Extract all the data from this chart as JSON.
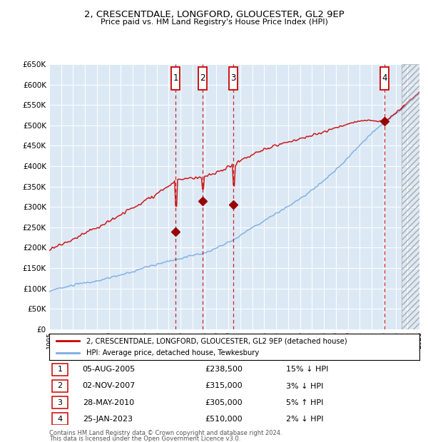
{
  "title1": "2, CRESCENTDALE, LONGFORD, GLOUCESTER, GL2 9EP",
  "title2": "Price paid vs. HM Land Registry's House Price Index (HPI)",
  "legend_line1": "2, CRESCENTDALE, LONGFORD, GLOUCESTER, GL2 9EP (detached house)",
  "legend_line2": "HPI: Average price, detached house, Tewkesbury",
  "footer1": "Contains HM Land Registry data © Crown copyright and database right 2024.",
  "footer2": "This data is licensed under the Open Government Licence v3.0.",
  "sale_events": [
    {
      "num": 1,
      "date": "05-AUG-2005",
      "price": "£238,500",
      "hpi": "15% ↓ HPI",
      "date_decimal": 2005.59,
      "sale_price": 238500
    },
    {
      "num": 2,
      "date": "02-NOV-2007",
      "price": "£315,000",
      "hpi": "3% ↓ HPI",
      "date_decimal": 2007.83,
      "sale_price": 315000
    },
    {
      "num": 3,
      "date": "28-MAY-2010",
      "price": "£305,000",
      "hpi": "5% ↑ HPI",
      "date_decimal": 2010.41,
      "sale_price": 305000
    },
    {
      "num": 4,
      "date": "25-JAN-2023",
      "price": "£510,000",
      "hpi": "2% ↓ HPI",
      "date_decimal": 2023.07,
      "sale_price": 510000
    }
  ],
  "xmin": 1995.0,
  "xmax": 2026.0,
  "ymin": 0,
  "ymax": 650000,
  "yticks": [
    0,
    50000,
    100000,
    150000,
    200000,
    250000,
    300000,
    350000,
    400000,
    450000,
    500000,
    550000,
    600000,
    650000
  ],
  "bg_color": "#dce9f5",
  "red_line_color": "#cc0000",
  "blue_line_color": "#7aace0",
  "vline_color": "#cc0000",
  "box_color": "#cc0000",
  "hatch_start": 2024.5,
  "marker_color": "#990000"
}
